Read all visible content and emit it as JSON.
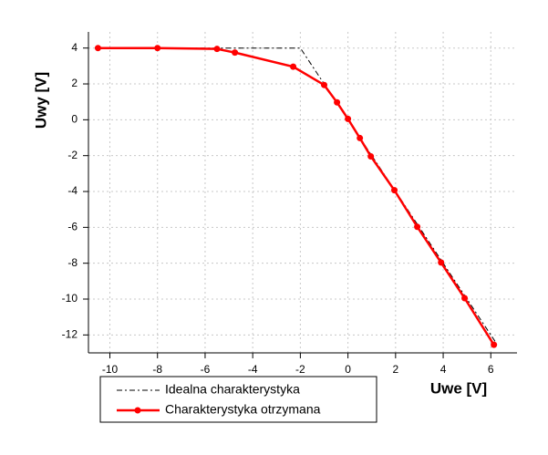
{
  "chart_data": {
    "type": "line",
    "x_label": "Uwe [V]",
    "y_label": "Uwy [V]",
    "xlim": [
      -10.9,
      7.1
    ],
    "xticks": [
      -10,
      -8,
      -6,
      -4,
      -2,
      0,
      2,
      4,
      6
    ],
    "ylim": [
      -13,
      4.9
    ],
    "yticks": [
      -12,
      -10,
      -8,
      -6,
      -4,
      -2,
      0,
      2,
      4
    ],
    "grid": true,
    "legend": "bottom-left",
    "series": [
      {
        "name": "Idealna charakterystyka",
        "color": "#000000",
        "style": "dashed",
        "x": [
          -10.5,
          -2,
          6.2
        ],
        "values": [
          4,
          4,
          -12.4
        ]
      },
      {
        "name": "Charakterystyka otrzymana",
        "color": "#ff0000",
        "style": "solid-markers",
        "x": [
          -10.5,
          -8,
          -5.5,
          -4.75,
          -2.3,
          -1,
          -0.46,
          0,
          0.5,
          0.96,
          1.95,
          2.91,
          3.91,
          4.9,
          6.13
        ],
        "values": [
          4,
          4,
          3.95,
          3.75,
          2.96,
          1.94,
          0.97,
          0.05,
          -1.02,
          -2.04,
          -3.93,
          -5.97,
          -7.96,
          -9.95,
          -12.55
        ]
      }
    ]
  }
}
